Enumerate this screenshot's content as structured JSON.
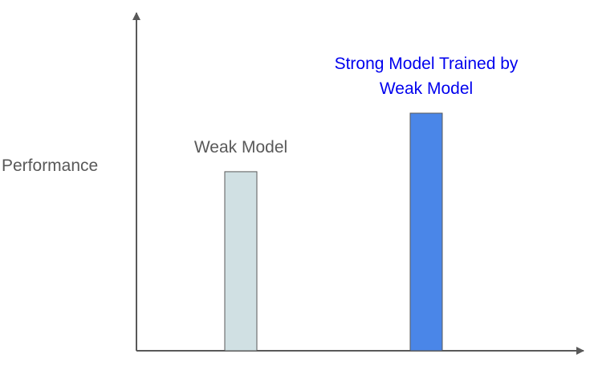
{
  "chart_data": {
    "type": "bar",
    "categories": [
      "Weak Model",
      "Strong Model Trained by Weak Model"
    ],
    "category_label_lines": [
      [
        "Weak Model"
      ],
      [
        "Strong Model Trained by",
        "Weak Model"
      ]
    ],
    "values": [
      52,
      69
    ],
    "ylim": [
      0,
      100
    ],
    "ylabel": "Performance",
    "xlabel": "",
    "title": "",
    "bar_colors": [
      "#d0e0e3",
      "#4a86e8"
    ],
    "label_colors": [
      "#595959",
      "#0000ee"
    ],
    "axis_color": "#595959",
    "bar_border_color": "#595959",
    "grid": false
  }
}
